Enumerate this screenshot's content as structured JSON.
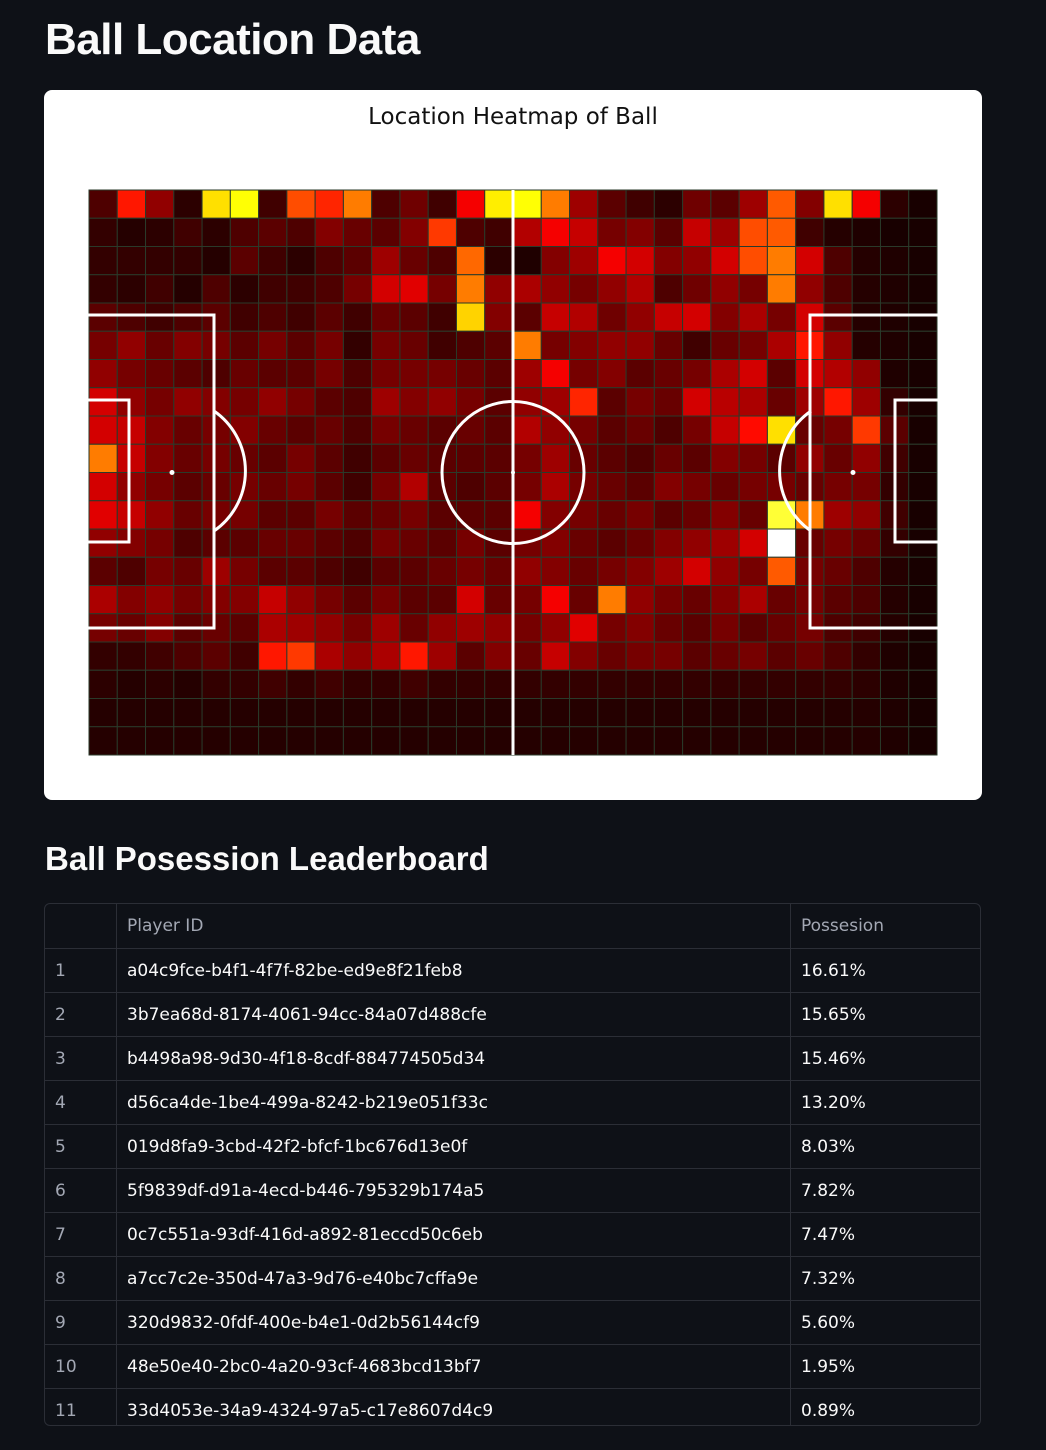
{
  "page": {
    "title": "Ball Location Data",
    "leaderboard_title": "Ball Posession Leaderboard"
  },
  "colors": {
    "background": "#0e1117",
    "card": "#ffffff",
    "pitch_lines": "#ffffff",
    "grid": "#2a3a2a"
  },
  "chart_data": {
    "type": "heatmap",
    "title": "Location Heatmap of Ball",
    "colormap": "hot",
    "columns": 30,
    "rows": 20,
    "vmax": 100,
    "cells": [
      [
        10,
        40,
        20,
        5,
        70,
        75,
        8,
        48,
        42,
        55,
        10,
        15,
        8,
        35,
        72,
        75,
        55,
        22,
        12,
        8,
        5,
        15,
        12,
        22,
        50,
        18,
        70,
        35,
        5,
        2
      ],
      [
        6,
        4,
        5,
        8,
        5,
        10,
        12,
        10,
        18,
        14,
        12,
        18,
        45,
        10,
        8,
        25,
        35,
        28,
        16,
        18,
        12,
        28,
        22,
        48,
        50,
        8,
        4,
        3,
        2,
        2
      ],
      [
        6,
        6,
        6,
        6,
        4,
        12,
        8,
        5,
        10,
        12,
        22,
        14,
        10,
        52,
        5,
        3,
        18,
        22,
        35,
        30,
        18,
        20,
        30,
        48,
        55,
        30,
        10,
        4,
        3,
        2
      ],
      [
        6,
        5,
        8,
        4,
        10,
        5,
        8,
        8,
        10,
        16,
        30,
        32,
        16,
        55,
        20,
        24,
        20,
        16,
        20,
        25,
        10,
        15,
        20,
        16,
        55,
        20,
        10,
        4,
        3,
        2
      ],
      [
        12,
        10,
        8,
        10,
        12,
        8,
        10,
        8,
        12,
        8,
        14,
        12,
        8,
        68,
        18,
        12,
        28,
        25,
        15,
        20,
        28,
        30,
        18,
        24,
        16,
        30,
        12,
        4,
        3,
        2
      ],
      [
        16,
        20,
        14,
        18,
        16,
        12,
        16,
        12,
        16,
        6,
        16,
        14,
        8,
        10,
        12,
        55,
        16,
        18,
        20,
        20,
        14,
        8,
        14,
        16,
        24,
        40,
        20,
        4,
        3,
        2
      ],
      [
        20,
        16,
        14,
        12,
        10,
        14,
        12,
        12,
        16,
        10,
        16,
        16,
        16,
        14,
        12,
        22,
        35,
        16,
        18,
        12,
        14,
        16,
        24,
        30,
        12,
        30,
        25,
        20,
        3,
        2
      ],
      [
        30,
        20,
        16,
        20,
        18,
        16,
        20,
        16,
        12,
        10,
        22,
        18,
        20,
        16,
        12,
        20,
        22,
        42,
        12,
        16,
        14,
        30,
        26,
        24,
        14,
        22,
        40,
        22,
        6,
        2
      ],
      [
        30,
        28,
        18,
        14,
        16,
        18,
        14,
        12,
        14,
        10,
        16,
        14,
        12,
        14,
        12,
        25,
        20,
        16,
        12,
        14,
        10,
        16,
        28,
        38,
        70,
        14,
        16,
        45,
        12,
        2
      ],
      [
        55,
        28,
        18,
        14,
        16,
        14,
        12,
        16,
        12,
        8,
        12,
        14,
        12,
        12,
        12,
        16,
        22,
        14,
        12,
        10,
        14,
        12,
        18,
        16,
        12,
        20,
        14,
        20,
        8,
        2
      ],
      [
        30,
        20,
        16,
        12,
        14,
        16,
        14,
        16,
        12,
        8,
        16,
        25,
        12,
        10,
        12,
        16,
        24,
        16,
        14,
        12,
        18,
        16,
        14,
        16,
        16,
        14,
        16,
        16,
        6,
        2
      ],
      [
        32,
        28,
        20,
        14,
        16,
        16,
        12,
        12,
        16,
        12,
        14,
        16,
        12,
        12,
        12,
        35,
        18,
        16,
        14,
        16,
        12,
        14,
        18,
        14,
        80,
        55,
        22,
        20,
        8,
        2
      ],
      [
        20,
        18,
        16,
        10,
        12,
        12,
        14,
        14,
        12,
        10,
        16,
        14,
        12,
        16,
        12,
        16,
        18,
        14,
        12,
        14,
        18,
        20,
        22,
        30,
        100,
        14,
        16,
        14,
        6,
        2
      ],
      [
        12,
        10,
        16,
        14,
        22,
        16,
        12,
        12,
        10,
        8,
        12,
        12,
        14,
        16,
        14,
        20,
        18,
        14,
        16,
        18,
        22,
        30,
        20,
        16,
        50,
        16,
        14,
        10,
        4,
        2
      ],
      [
        24,
        18,
        20,
        16,
        18,
        18,
        28,
        20,
        16,
        12,
        16,
        12,
        12,
        30,
        14,
        16,
        35,
        14,
        55,
        20,
        16,
        14,
        18,
        24,
        14,
        16,
        12,
        10,
        4,
        2
      ],
      [
        16,
        14,
        18,
        12,
        14,
        12,
        24,
        22,
        20,
        16,
        22,
        14,
        20,
        22,
        20,
        16,
        20,
        32,
        16,
        18,
        14,
        12,
        16,
        12,
        14,
        16,
        10,
        8,
        4,
        2
      ],
      [
        6,
        6,
        8,
        10,
        12,
        8,
        40,
        45,
        24,
        20,
        24,
        40,
        22,
        12,
        18,
        14,
        28,
        18,
        14,
        16,
        16,
        12,
        14,
        16,
        12,
        14,
        10,
        6,
        3,
        2
      ],
      [
        5,
        4,
        5,
        4,
        6,
        6,
        8,
        6,
        8,
        6,
        6,
        8,
        6,
        6,
        6,
        6,
        6,
        6,
        6,
        6,
        6,
        6,
        6,
        6,
        6,
        6,
        6,
        5,
        3,
        2
      ],
      [
        4,
        4,
        4,
        4,
        4,
        4,
        4,
        4,
        4,
        4,
        4,
        4,
        4,
        4,
        4,
        4,
        4,
        4,
        4,
        4,
        4,
        4,
        4,
        4,
        4,
        4,
        4,
        4,
        3,
        2
      ],
      [
        4,
        4,
        4,
        4,
        4,
        4,
        4,
        4,
        4,
        4,
        4,
        4,
        4,
        4,
        4,
        4,
        4,
        4,
        4,
        4,
        4,
        4,
        4,
        4,
        4,
        4,
        4,
        4,
        3,
        2
      ]
    ]
  },
  "leaderboard": {
    "columns": [
      "",
      "Player ID",
      "Possesion"
    ],
    "rows": [
      {
        "idx": "1",
        "player": "a04c9fce-b4f1-4f7f-82be-ed9e8f21feb8",
        "pos": "16.61%"
      },
      {
        "idx": "2",
        "player": "3b7ea68d-8174-4061-94cc-84a07d488cfe",
        "pos": "15.65%"
      },
      {
        "idx": "3",
        "player": "b4498a98-9d30-4f18-8cdf-884774505d34",
        "pos": "15.46%"
      },
      {
        "idx": "4",
        "player": "d56ca4de-1be4-499a-8242-b219e051f33c",
        "pos": "13.20%"
      },
      {
        "idx": "5",
        "player": "019d8fa9-3cbd-42f2-bfcf-1bc676d13e0f",
        "pos": "8.03%"
      },
      {
        "idx": "6",
        "player": "5f9839df-d91a-4ecd-b446-795329b174a5",
        "pos": "7.82%"
      },
      {
        "idx": "7",
        "player": "0c7c551a-93df-416d-a892-81eccd50c6eb",
        "pos": "7.47%"
      },
      {
        "idx": "8",
        "player": "a7cc7c2e-350d-47a3-9d76-e40bc7cffa9e",
        "pos": "7.32%"
      },
      {
        "idx": "9",
        "player": "320d9832-0fdf-400e-b4e1-0d2b56144cf9",
        "pos": "5.60%"
      },
      {
        "idx": "10",
        "player": "48e50e40-2bc0-4a20-93cf-4683bcd13bf7",
        "pos": "1.95%"
      },
      {
        "idx": "11",
        "player": "33d4053e-34a9-4324-97a5-c17e8607d4c9",
        "pos": "0.89%"
      }
    ]
  }
}
